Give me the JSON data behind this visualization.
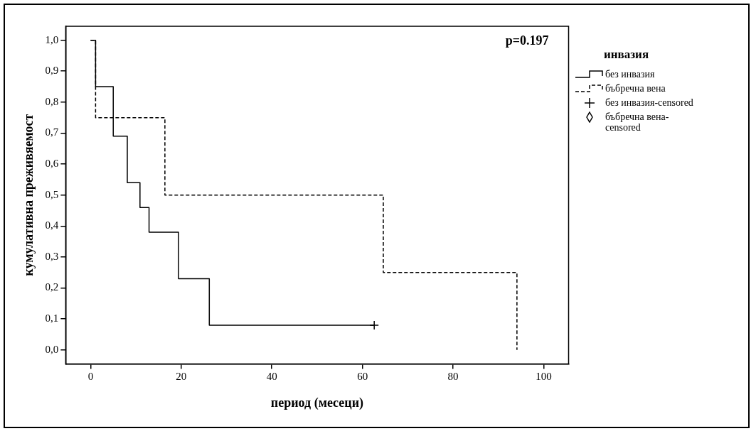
{
  "chart_data": {
    "type": "step",
    "xlabel": "период (месеци)",
    "ylabel": "кумулативна преживяемост",
    "legend_title": "инвазия",
    "annotations": [
      "p=0.197"
    ],
    "xlim": [
      -5.5,
      105.5
    ],
    "xticks": [
      0,
      20,
      40,
      60,
      80,
      100
    ],
    "ylim": [
      -0.045,
      1.045
    ],
    "yticks": [
      {
        "value": 0,
        "label": "0,0"
      },
      {
        "value": 0.1,
        "label": "0,1"
      },
      {
        "value": 0.2,
        "label": "0,2"
      },
      {
        "value": 0.3,
        "label": "0,3"
      },
      {
        "value": 0.4,
        "label": "0,4"
      },
      {
        "value": 0.5,
        "label": "0,5"
      },
      {
        "value": 0.6,
        "label": "0,6"
      },
      {
        "value": 0.7,
        "label": "0,7"
      },
      {
        "value": 0.8,
        "label": "0,8"
      },
      {
        "value": 0.9,
        "label": "0,9"
      },
      {
        "value": 1,
        "label": "1,0"
      }
    ],
    "grid": false,
    "legend": "right",
    "series": [
      {
        "name": "без инвазия",
        "color": "#000000",
        "line_style": "solid",
        "x": [
          0,
          1.1,
          5.0,
          8.1,
          10.9,
          12.9,
          19.4,
          26.2,
          62.6
        ],
        "values": [
          1,
          0.85,
          0.69,
          0.54,
          0.46,
          0.38,
          0.23,
          0.08,
          0.08
        ]
      },
      {
        "name": "бъбречна вена",
        "color": "#000000",
        "line_style": "dashed",
        "x": [
          0,
          1.1,
          16.4,
          64.6,
          94.1
        ],
        "values": [
          1,
          0.75,
          0.5,
          0.25,
          0
        ]
      },
      {
        "name": "без инвазия-censored",
        "type": "scatter",
        "color": "#000000",
        "marker": "cross",
        "x": [
          62.6
        ],
        "values": [
          0.08
        ]
      },
      {
        "name": "бъбречна вена-censored",
        "type": "scatter",
        "color": "#000000",
        "marker": "diamond"
      }
    ]
  }
}
